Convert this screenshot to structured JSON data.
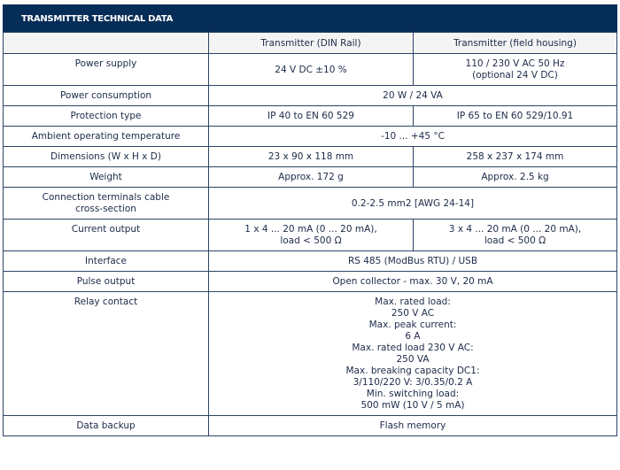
{
  "title": "TRANSMITTER TECHNICAL DATA",
  "columns": [
    "",
    "Transmitter (DIN Rail)",
    "Transmitter (field housing)"
  ],
  "rows": {
    "power_supply": {
      "label": "Power supply",
      "din": "24 V DC ±10 %",
      "field": [
        "110 / 230 V AC 50 Hz",
        "(optional 24 V DC)"
      ]
    },
    "power_consumption": {
      "label": "Power consumption",
      "value": "20 W / 24 VA"
    },
    "protection": {
      "label": "Protection type",
      "din": "IP 40 to EN 60 529",
      "field": "IP 65 to EN 60 529/10.91"
    },
    "temperature": {
      "label": "Ambient operating temperature",
      "value": "-10 ... +45 °C"
    },
    "dimensions": {
      "label": "Dimensions (W x H x D)",
      "din": "23 x 90 x 118 mm",
      "field": "258 x 237 x 174 mm"
    },
    "weight": {
      "label": "Weight",
      "din": "Approx. 172 g",
      "field": "Approx. 2.5 kg"
    },
    "terminals": {
      "label": [
        "Connection terminals cable",
        "cross-section"
      ],
      "value": "0.2-2.5 mm2 [AWG 24-14]"
    },
    "current_output": {
      "label": "Current output",
      "din": [
        "1 x 4 ... 20 mA (0 ... 20 mA),",
        "load < 500 Ω"
      ],
      "field": [
        "3 x 4 ... 20 mA (0 ... 20 mA),",
        "load < 500 Ω"
      ]
    },
    "interface": {
      "label": "Interface",
      "value": "RS 485 (ModBus RTU) / USB"
    },
    "pulse_output": {
      "label": "Pulse output",
      "value": "Open collector - max. 30 V, 20 mA"
    },
    "relay": {
      "label": "Relay contact",
      "value": [
        "Max. rated load:",
        "250 V AC",
        "Max. peak current:",
        "6 A",
        "Max. rated load 230 V AC:",
        "250 VA",
        "Max. breaking capacity DC1:",
        "3/110/220 V: 3/0.35/0.2 A",
        "Min. switching load:",
        "500 mW (10 V / 5 mA)"
      ]
    },
    "backup": {
      "label": "Data backup",
      "value": "Flash memory"
    }
  }
}
